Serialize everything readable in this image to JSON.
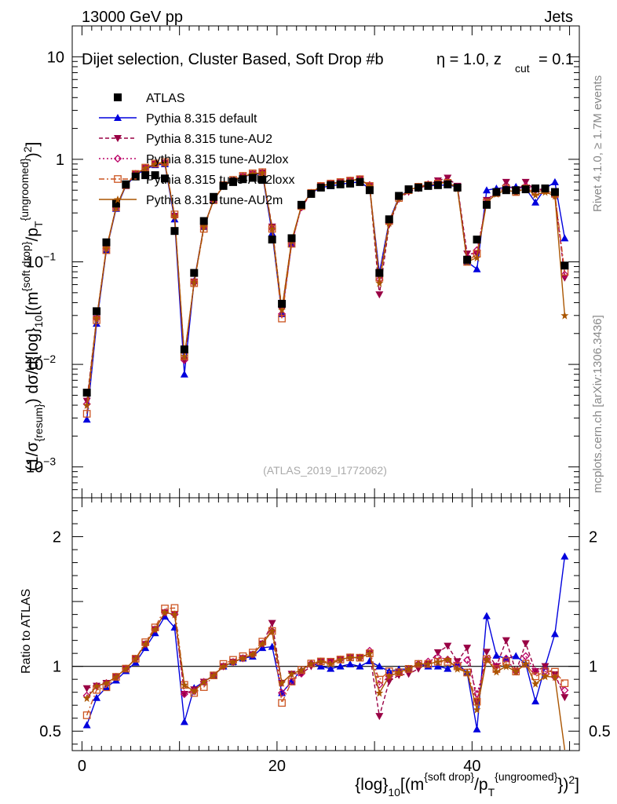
{
  "header": {
    "energy": "13000 GeV pp",
    "category": "Jets",
    "plot_title": "Dijet selection, Cluster Based, Soft Drop #b",
    "beta_label": "η = 1.0, z",
    "zcut_sub": "cut",
    "zcut_value": "= 0.1",
    "analysis_id": "(ATLAS_2019_I1772062)",
    "rivet_note": "Rivet 4.1.0, ≥ 1.7M events",
    "site_note": "mcplots.cern.ch [arXiv:1306.3436]"
  },
  "colors": {
    "atlas": "#000000",
    "default": "#0000dd",
    "au2": "#990044",
    "au2lox": "#bb0066",
    "au2loxx": "#cc5522",
    "au2m": "#aa5500"
  },
  "chart_data": {
    "type": "line",
    "x_label": "{log}10[(m{soft drop}/pT{ungroomed})2]",
    "y_label_main": "(1/σ{resum}) dσ/d{log}10[(m{soft drop}/pT{ungroomed})2]",
    "y_label_ratio": "Ratio to ATLAS",
    "x_range": [
      -1,
      51
    ],
    "y_range_main": [
      0.0005,
      20
    ],
    "y_scale_main": "log",
    "y_range_ratio": [
      0.35,
      2.3
    ],
    "x_ticks": [
      0,
      20,
      40
    ],
    "y_ticks_main": [
      {
        "value": 10,
        "base": "10",
        "exp": ""
      },
      {
        "value": 1,
        "base": "1",
        "exp": ""
      },
      {
        "value": 0.1,
        "base": "10",
        "exp": "−1"
      },
      {
        "value": 0.01,
        "base": "10",
        "exp": "−2"
      },
      {
        "value": 0.001,
        "base": "10",
        "exp": "−3"
      }
    ],
    "y_ticks_ratio": [
      {
        "value": 2,
        "label": "2"
      },
      {
        "value": 1,
        "label": "1"
      },
      {
        "value": 0.5,
        "label": "0.5"
      }
    ],
    "x": [
      0.5,
      1.5,
      2.5,
      3.5,
      4.5,
      5.5,
      6.5,
      7.5,
      8.5,
      9.5,
      10.5,
      11.5,
      12.5,
      13.5,
      14.5,
      15.5,
      16.5,
      17.5,
      18.5,
      19.5,
      20.5,
      21.5,
      22.5,
      23.5,
      24.5,
      25.5,
      26.5,
      27.5,
      28.5,
      29.5,
      30.5,
      31.5,
      32.5,
      33.5,
      34.5,
      35.5,
      36.5,
      37.5,
      38.5,
      39.5,
      40.5,
      41.5,
      42.5,
      43.5,
      44.5,
      45.5,
      46.5,
      47.5,
      48.5,
      49.5
    ],
    "series": [
      {
        "name": "ATLAS",
        "key": "atlas",
        "values": [
          0.0053,
          0.033,
          0.155,
          0.37,
          0.57,
          0.68,
          0.7,
          0.7,
          0.65,
          0.2,
          0.014,
          0.078,
          0.25,
          0.43,
          0.55,
          0.6,
          0.64,
          0.66,
          0.63,
          0.165,
          0.039,
          0.17,
          0.36,
          0.46,
          0.53,
          0.56,
          0.57,
          0.58,
          0.6,
          0.5,
          0.078,
          0.26,
          0.44,
          0.51,
          0.53,
          0.55,
          0.56,
          0.57,
          0.53,
          0.105,
          0.165,
          0.36,
          0.48,
          0.5,
          0.5,
          0.51,
          0.52,
          0.52,
          0.48,
          0.092
        ]
      },
      {
        "name": "Pythia 8.315 default",
        "key": "default",
        "values": [
          0.0029,
          0.025,
          0.13,
          0.33,
          0.55,
          0.7,
          0.8,
          0.88,
          0.9,
          0.26,
          0.008,
          0.065,
          0.22,
          0.4,
          0.55,
          0.62,
          0.68,
          0.71,
          0.72,
          0.19,
          0.031,
          0.15,
          0.35,
          0.47,
          0.53,
          0.55,
          0.57,
          0.59,
          0.6,
          0.52,
          0.078,
          0.25,
          0.43,
          0.5,
          0.54,
          0.55,
          0.56,
          0.56,
          0.54,
          0.1,
          0.085,
          0.5,
          0.52,
          0.53,
          0.54,
          0.52,
          0.38,
          0.52,
          0.6,
          0.17
        ]
      },
      {
        "name": "Pythia 8.315 tune-AU2",
        "key": "au2",
        "values": [
          0.0044,
          0.028,
          0.135,
          0.34,
          0.56,
          0.72,
          0.82,
          0.9,
          0.92,
          0.28,
          0.011,
          0.064,
          0.22,
          0.4,
          0.55,
          0.62,
          0.68,
          0.72,
          0.74,
          0.22,
          0.034,
          0.16,
          0.34,
          0.46,
          0.55,
          0.58,
          0.6,
          0.62,
          0.64,
          0.55,
          0.048,
          0.23,
          0.41,
          0.48,
          0.52,
          0.56,
          0.62,
          0.66,
          0.55,
          0.12,
          0.12,
          0.4,
          0.48,
          0.6,
          0.48,
          0.6,
          0.5,
          0.52,
          0.45,
          0.07
        ]
      },
      {
        "name": "Pythia 8.315 tune-AU2lox",
        "key": "au2lox",
        "values": [
          0.0041,
          0.028,
          0.135,
          0.34,
          0.56,
          0.72,
          0.82,
          0.9,
          0.92,
          0.28,
          0.011,
          0.063,
          0.22,
          0.4,
          0.55,
          0.62,
          0.68,
          0.72,
          0.74,
          0.21,
          0.031,
          0.15,
          0.34,
          0.47,
          0.55,
          0.58,
          0.6,
          0.62,
          0.64,
          0.56,
          0.067,
          0.24,
          0.42,
          0.5,
          0.54,
          0.57,
          0.6,
          0.6,
          0.54,
          0.11,
          0.13,
          0.38,
          0.48,
          0.53,
          0.48,
          0.55,
          0.5,
          0.5,
          0.44,
          0.075
        ]
      },
      {
        "name": "Pythia 8.315 tune-AU2loxx",
        "key": "au2loxx",
        "values": [
          0.0033,
          0.027,
          0.13,
          0.34,
          0.56,
          0.72,
          0.83,
          0.91,
          0.94,
          0.29,
          0.012,
          0.062,
          0.21,
          0.4,
          0.56,
          0.63,
          0.69,
          0.73,
          0.75,
          0.21,
          0.028,
          0.15,
          0.35,
          0.47,
          0.55,
          0.58,
          0.6,
          0.62,
          0.64,
          0.55,
          0.07,
          0.25,
          0.42,
          0.5,
          0.54,
          0.56,
          0.58,
          0.59,
          0.53,
          0.1,
          0.12,
          0.38,
          0.47,
          0.52,
          0.48,
          0.52,
          0.48,
          0.5,
          0.46,
          0.08
        ]
      },
      {
        "name": "Pythia 8.315 tune-AU2m",
        "key": "au2m",
        "values": [
          0.004,
          0.028,
          0.135,
          0.34,
          0.56,
          0.72,
          0.82,
          0.9,
          0.92,
          0.28,
          0.012,
          0.063,
          0.22,
          0.4,
          0.55,
          0.62,
          0.68,
          0.72,
          0.74,
          0.21,
          0.034,
          0.16,
          0.35,
          0.47,
          0.55,
          0.57,
          0.6,
          0.62,
          0.64,
          0.55,
          0.062,
          0.24,
          0.42,
          0.5,
          0.54,
          0.56,
          0.58,
          0.6,
          0.52,
          0.1,
          0.11,
          0.38,
          0.46,
          0.5,
          0.48,
          0.52,
          0.45,
          0.48,
          0.44,
          0.03
        ]
      }
    ]
  },
  "legend": [
    {
      "label": "ATLAS",
      "key": "atlas"
    },
    {
      "label": "Pythia 8.315 default",
      "key": "default"
    },
    {
      "label": "Pythia 8.315 tune-AU2",
      "key": "au2"
    },
    {
      "label": "Pythia 8.315 tune-AU2lox",
      "key": "au2lox"
    },
    {
      "label": "Pythia 8.315 tune-AU2loxx",
      "key": "au2loxx"
    },
    {
      "label": "Pythia 8.315 tune-AU2m",
      "key": "au2m"
    }
  ]
}
